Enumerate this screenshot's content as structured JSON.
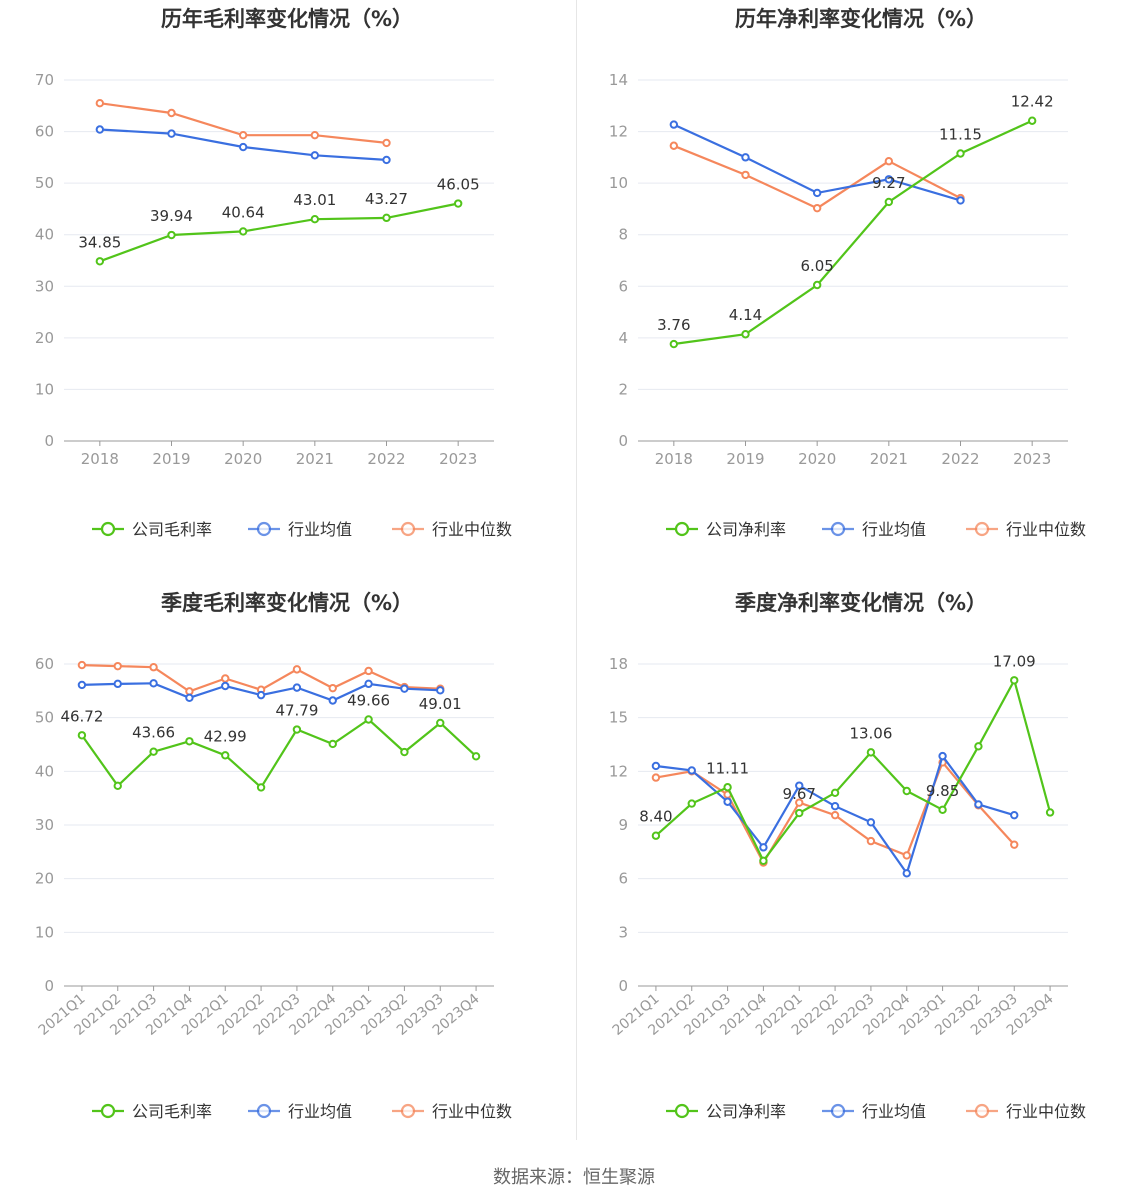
{
  "colors": {
    "company": "#52c41a",
    "avg": "#3a6fe0",
    "median": "#f5875c",
    "grid": "#e6e9f0",
    "axis": "#999999",
    "tick_text": "#999999",
    "label_text": "#333333",
    "title_text": "#333333"
  },
  "source_text": "数据来源：恒生聚源",
  "chart_data": [
    {
      "id": "annual-gross",
      "type": "line",
      "title": "历年毛利率变化情况（%）",
      "categories": [
        "2018",
        "2019",
        "2020",
        "2021",
        "2022",
        "2023"
      ],
      "y_ticks": [
        0,
        10,
        20,
        30,
        40,
        50,
        60,
        70
      ],
      "ylim": [
        0,
        70
      ],
      "rotate_x_labels": false,
      "series": [
        {
          "name": "公司毛利率",
          "key": "company",
          "values": [
            34.85,
            39.94,
            40.64,
            43.01,
            43.27,
            46.05
          ],
          "labels": [
            "34.85",
            "39.94",
            "40.64",
            "43.01",
            "43.27",
            "46.05"
          ]
        },
        {
          "name": "行业均值",
          "key": "avg",
          "values": [
            60.4,
            59.6,
            57.0,
            55.4,
            54.5,
            null
          ]
        },
        {
          "name": "行业中位数",
          "key": "median",
          "values": [
            65.5,
            63.6,
            59.3,
            59.3,
            57.8,
            null
          ]
        }
      ]
    },
    {
      "id": "annual-net",
      "type": "line",
      "title": "历年净利率变化情况（%）",
      "categories": [
        "2018",
        "2019",
        "2020",
        "2021",
        "2022",
        "2023"
      ],
      "y_ticks": [
        0,
        2,
        4,
        6,
        8,
        10,
        12,
        14
      ],
      "ylim": [
        0,
        14
      ],
      "rotate_x_labels": false,
      "series": [
        {
          "name": "公司净利率",
          "key": "company",
          "values": [
            3.76,
            4.14,
            6.05,
            9.27,
            11.15,
            12.42
          ],
          "labels": [
            "3.76",
            "4.14",
            "6.05",
            "9.27",
            "11.15",
            "12.42"
          ]
        },
        {
          "name": "行业均值",
          "key": "avg",
          "values": [
            12.27,
            11.0,
            9.62,
            10.15,
            9.33,
            null
          ]
        },
        {
          "name": "行业中位数",
          "key": "median",
          "values": [
            11.45,
            10.32,
            9.03,
            10.85,
            9.42,
            null
          ]
        }
      ]
    },
    {
      "id": "quarterly-gross",
      "type": "line",
      "title": "季度毛利率变化情况（%）",
      "categories": [
        "2021Q1",
        "2021Q2",
        "2021Q3",
        "2021Q4",
        "2022Q1",
        "2022Q2",
        "2022Q3",
        "2022Q4",
        "2023Q1",
        "2023Q2",
        "2023Q3",
        "2023Q4"
      ],
      "y_ticks": [
        0,
        10,
        20,
        30,
        40,
        50,
        60
      ],
      "ylim": [
        0,
        60
      ],
      "rotate_x_labels": true,
      "series": [
        {
          "name": "公司毛利率",
          "key": "company",
          "values": [
            46.72,
            37.3,
            43.66,
            45.6,
            42.99,
            37.0,
            47.79,
            45.1,
            49.66,
            43.6,
            49.01,
            42.8
          ],
          "labels": [
            "46.72",
            null,
            "43.66",
            null,
            "42.99",
            null,
            "47.79",
            null,
            "49.66",
            null,
            "49.01",
            null
          ]
        },
        {
          "name": "行业均值",
          "key": "avg",
          "values": [
            56.1,
            56.3,
            56.4,
            53.7,
            55.9,
            54.2,
            55.6,
            53.2,
            56.3,
            55.4,
            55.1,
            null
          ]
        },
        {
          "name": "行业中位数",
          "key": "median",
          "values": [
            59.8,
            59.6,
            59.4,
            54.9,
            57.3,
            55.2,
            59.0,
            55.5,
            58.7,
            55.7,
            55.4,
            null
          ]
        }
      ]
    },
    {
      "id": "quarterly-net",
      "type": "line",
      "title": "季度净利率变化情况（%）",
      "categories": [
        "2021Q1",
        "2021Q2",
        "2021Q3",
        "2021Q4",
        "2022Q1",
        "2022Q2",
        "2022Q3",
        "2022Q4",
        "2023Q1",
        "2023Q2",
        "2023Q3",
        "2023Q4"
      ],
      "y_ticks": [
        0,
        3,
        6,
        9,
        12,
        15,
        18
      ],
      "ylim": [
        0,
        18
      ],
      "rotate_x_labels": true,
      "series": [
        {
          "name": "公司净利率",
          "key": "company",
          "values": [
            8.4,
            10.2,
            11.11,
            7.0,
            9.67,
            10.8,
            13.06,
            10.9,
            9.85,
            13.4,
            17.09,
            9.7
          ],
          "labels": [
            "8.40",
            null,
            "11.11",
            null,
            "9.67",
            null,
            "13.06",
            null,
            "9.85",
            null,
            "17.09",
            null
          ]
        },
        {
          "name": "行业均值",
          "key": "avg",
          "values": [
            12.3,
            12.05,
            10.3,
            7.75,
            11.2,
            10.05,
            9.15,
            6.3,
            12.85,
            10.15,
            9.55,
            null
          ]
        },
        {
          "name": "行业中位数",
          "key": "median",
          "values": [
            11.65,
            12.0,
            10.7,
            6.9,
            10.25,
            9.55,
            8.1,
            7.3,
            12.5,
            10.1,
            7.9,
            null
          ]
        }
      ]
    }
  ]
}
